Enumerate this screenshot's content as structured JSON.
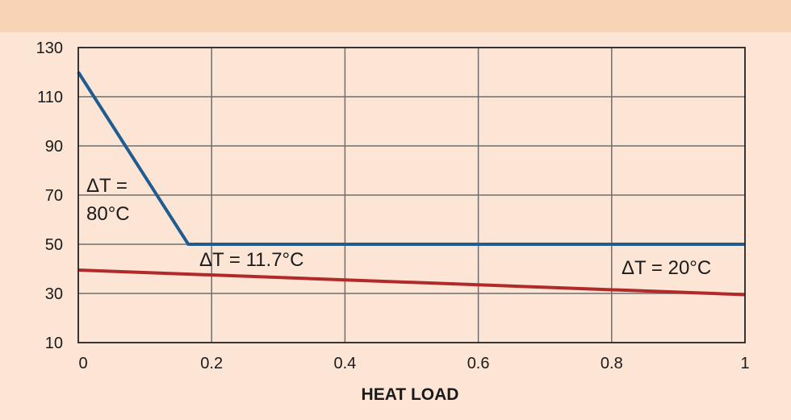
{
  "chart_data": {
    "type": "line",
    "title": "",
    "xlabel": "HEAT LOAD",
    "ylabel": "",
    "xlim": [
      0,
      1
    ],
    "ylim": [
      10,
      130
    ],
    "x_ticks": [
      0,
      0.2,
      0.4,
      0.6,
      0.8,
      1
    ],
    "x_tick_labels": [
      "0",
      "0.2",
      "0.4",
      "0.6",
      "0.8",
      "1"
    ],
    "y_ticks": [
      10,
      30,
      50,
      70,
      90,
      110,
      130
    ],
    "y_tick_labels": [
      "10",
      "30",
      "50",
      "70",
      "90",
      "110",
      "130"
    ],
    "grid": true,
    "series": [
      {
        "color": "#1f5c8f",
        "points": [
          [
            0,
            120
          ],
          [
            0.165,
            50
          ],
          [
            1,
            50
          ]
        ]
      },
      {
        "color": "#b02a2a",
        "points": [
          [
            0,
            39.5
          ],
          [
            1,
            29.5
          ]
        ]
      }
    ],
    "annotations": [
      {
        "lines": [
          "ΔT =",
          "80°C"
        ]
      },
      {
        "lines": [
          "ΔT = 11.7°C"
        ]
      },
      {
        "lines": [
          "ΔT = 20°C"
        ]
      }
    ],
    "colors": {
      "background": "#f9d3b6",
      "plot_background": "#fde5d6",
      "grid": "#6e6e6e",
      "axis": "#222222"
    }
  }
}
